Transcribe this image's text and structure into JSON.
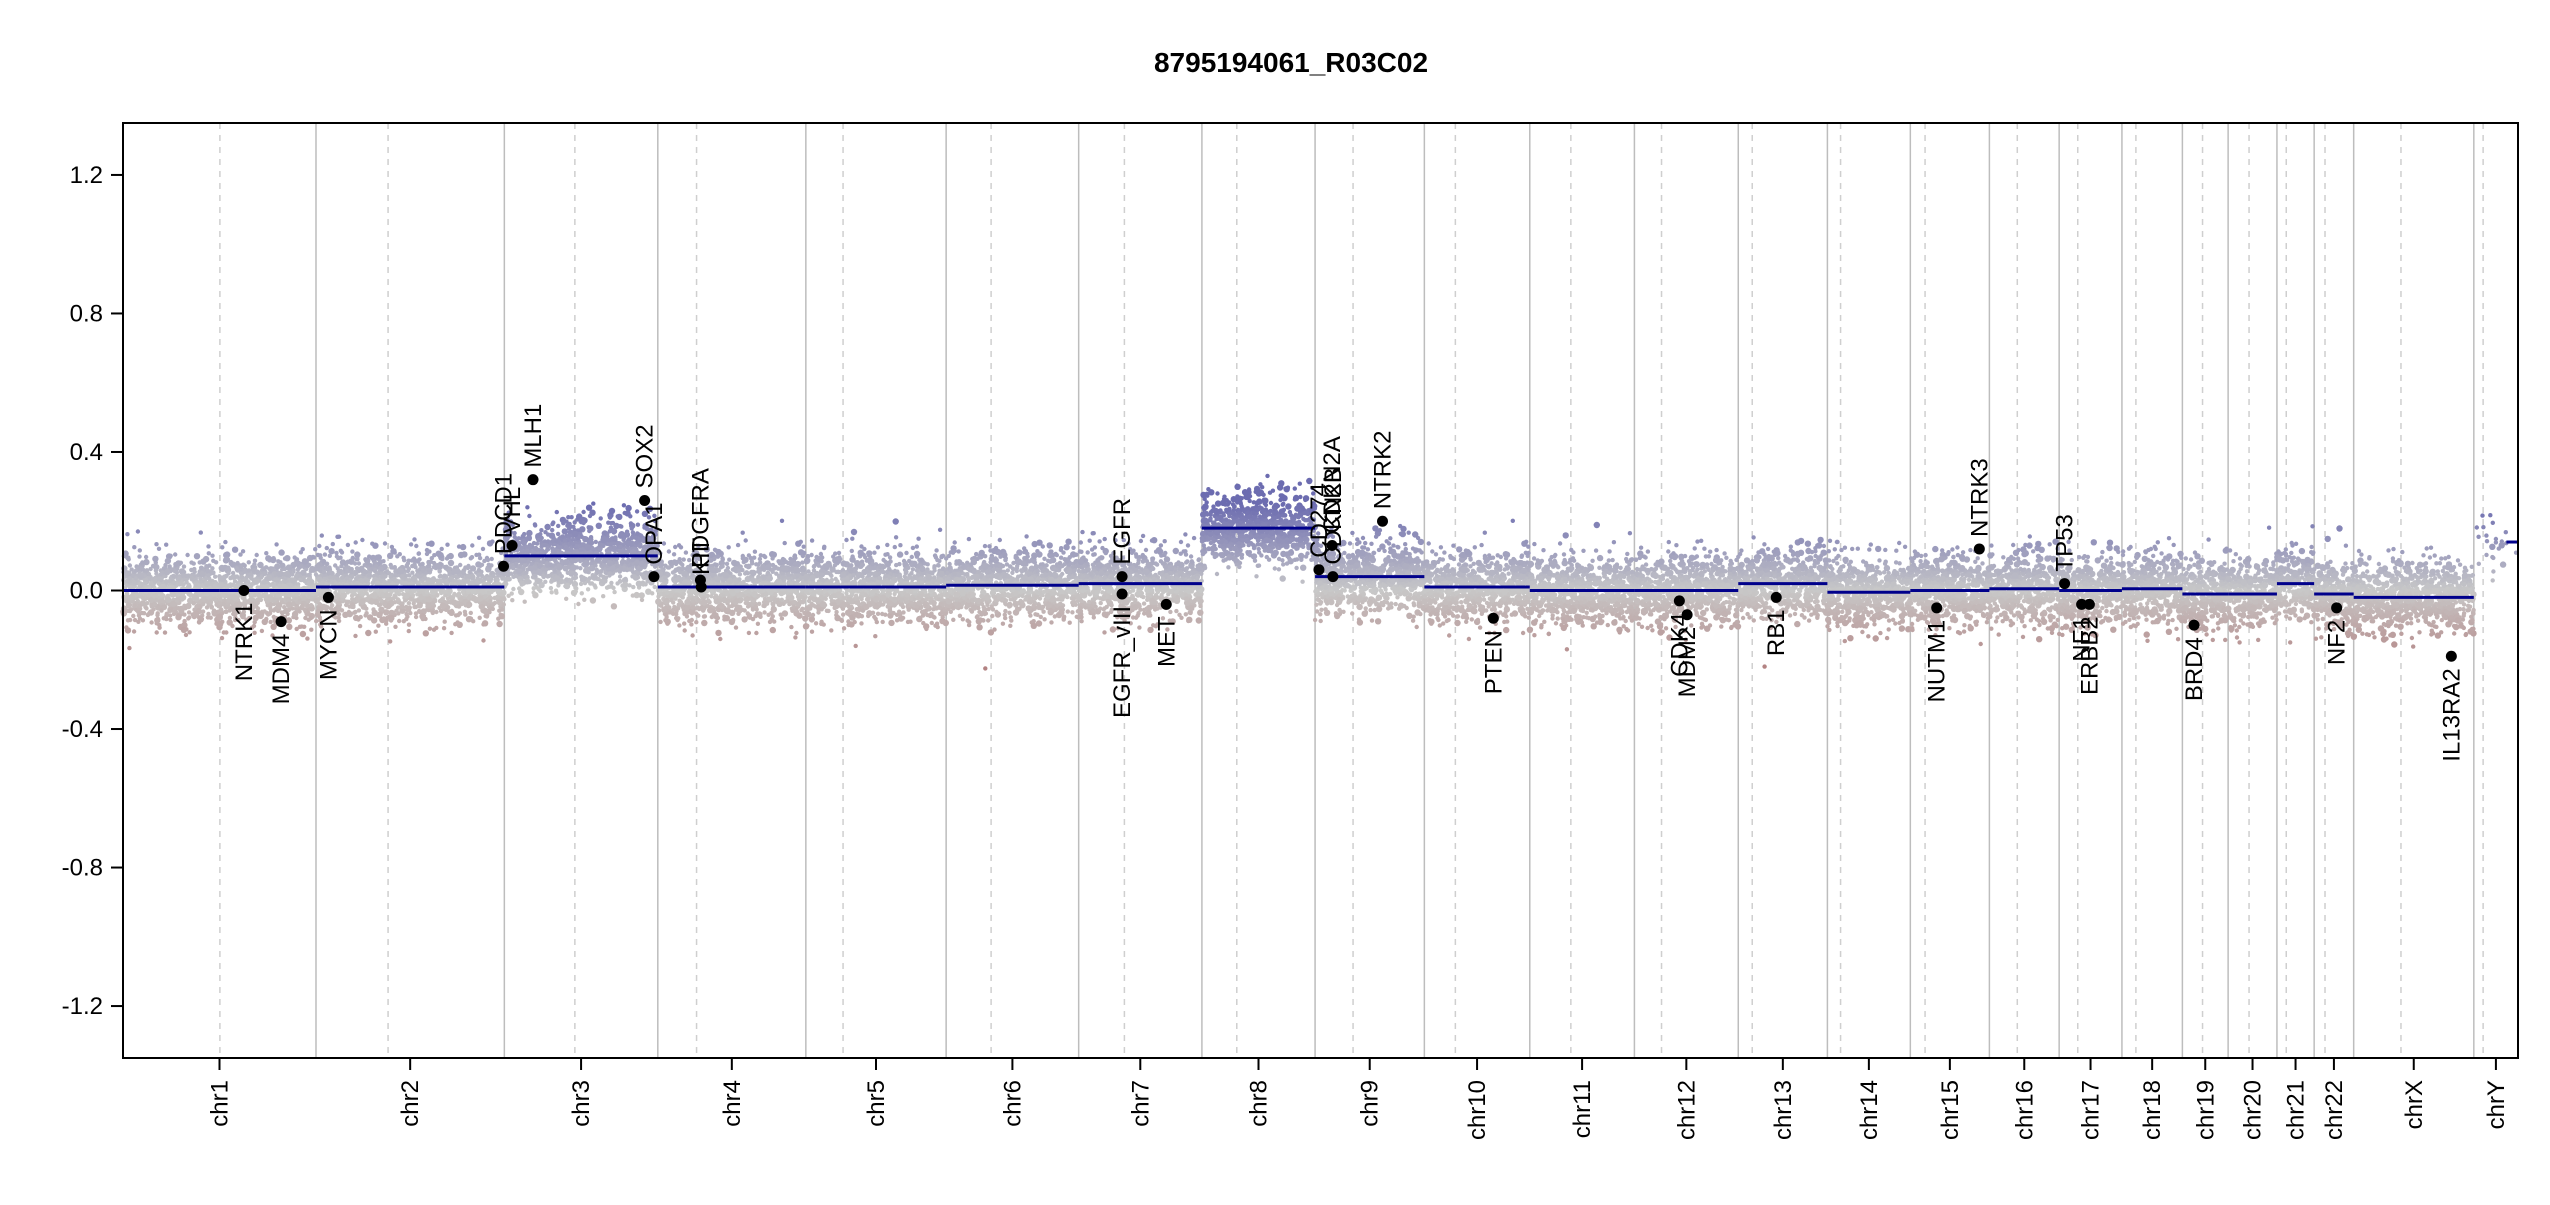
{
  "chart_data": {
    "type": "scatter",
    "title": "8795194061_R03C02",
    "xlabel": "",
    "ylabel": "",
    "ylim": [
      -1.35,
      1.35
    ],
    "y_ticks": [
      {
        "value": 1.2,
        "label": "1.2"
      },
      {
        "value": 0.8,
        "label": "0.8"
      },
      {
        "value": 0.4,
        "label": "0.4"
      },
      {
        "value": 0.0,
        "label": "0.0"
      },
      {
        "value": -0.4,
        "label": "-0.4"
      },
      {
        "value": -0.8,
        "label": "-0.8"
      },
      {
        "value": -1.2,
        "label": "-1.2"
      }
    ],
    "chromosomes": [
      {
        "name": "chr1",
        "start": 0,
        "end": 249,
        "centromere": 125,
        "segments": [
          {
            "from": 0,
            "to": 125,
            "value": 0.0
          },
          {
            "from": 125,
            "to": 249,
            "value": 0.0
          }
        ]
      },
      {
        "name": "chr2",
        "start": 249,
        "end": 492,
        "centromere": 342,
        "segments": [
          {
            "from": 249,
            "to": 492,
            "value": 0.01
          }
        ]
      },
      {
        "name": "chr3",
        "start": 492,
        "end": 690,
        "centromere": 583,
        "segments": [
          {
            "from": 492,
            "to": 690,
            "value": 0.1
          }
        ]
      },
      {
        "name": "chr4",
        "start": 690,
        "end": 881,
        "centromere": 740,
        "segments": [
          {
            "from": 690,
            "to": 881,
            "value": 0.01
          }
        ]
      },
      {
        "name": "chr5",
        "start": 881,
        "end": 1062,
        "centromere": 929,
        "segments": [
          {
            "from": 881,
            "to": 1062,
            "value": 0.01
          }
        ]
      },
      {
        "name": "chr6",
        "start": 1062,
        "end": 1233,
        "centromere": 1120,
        "segments": [
          {
            "from": 1062,
            "to": 1233,
            "value": 0.015
          }
        ]
      },
      {
        "name": "chr7",
        "start": 1233,
        "end": 1392,
        "centromere": 1292,
        "segments": [
          {
            "from": 1233,
            "to": 1392,
            "value": 0.02
          }
        ]
      },
      {
        "name": "chr8",
        "start": 1392,
        "end": 1538,
        "centromere": 1437,
        "segments": [
          {
            "from": 1392,
            "to": 1538,
            "value": 0.18
          }
        ]
      },
      {
        "name": "chr9",
        "start": 1538,
        "end": 1679,
        "centromere": 1587,
        "segments": [
          {
            "from": 1538,
            "to": 1679,
            "value": 0.04
          }
        ]
      },
      {
        "name": "chr10",
        "start": 1679,
        "end": 1815,
        "centromere": 1719,
        "segments": [
          {
            "from": 1679,
            "to": 1815,
            "value": 0.01
          }
        ]
      },
      {
        "name": "chr11",
        "start": 1815,
        "end": 1950,
        "centromere": 1868,
        "segments": [
          {
            "from": 1815,
            "to": 1950,
            "value": 0.0
          }
        ]
      },
      {
        "name": "chr12",
        "start": 1950,
        "end": 2084,
        "centromere": 1985,
        "segments": [
          {
            "from": 1950,
            "to": 2084,
            "value": 0.0
          }
        ]
      },
      {
        "name": "chr13",
        "start": 2084,
        "end": 2199,
        "centromere": 2102,
        "segments": [
          {
            "from": 2084,
            "to": 2199,
            "value": 0.02
          }
        ]
      },
      {
        "name": "chr14",
        "start": 2199,
        "end": 2306,
        "centromere": 2216,
        "segments": [
          {
            "from": 2199,
            "to": 2306,
            "value": -0.005
          }
        ]
      },
      {
        "name": "chr15",
        "start": 2306,
        "end": 2408,
        "centromere": 2325,
        "segments": [
          {
            "from": 2306,
            "to": 2408,
            "value": 0.0
          }
        ]
      },
      {
        "name": "chr16",
        "start": 2408,
        "end": 2498,
        "centromere": 2444,
        "segments": [
          {
            "from": 2408,
            "to": 2498,
            "value": 0.005
          }
        ]
      },
      {
        "name": "chr17",
        "start": 2498,
        "end": 2579,
        "centromere": 2522,
        "segments": [
          {
            "from": 2498,
            "to": 2579,
            "value": 0.0
          }
        ]
      },
      {
        "name": "chr18",
        "start": 2579,
        "end": 2657,
        "centromere": 2597,
        "segments": [
          {
            "from": 2579,
            "to": 2657,
            "value": 0.005
          }
        ]
      },
      {
        "name": "chr19",
        "start": 2657,
        "end": 2716,
        "centromere": 2683,
        "segments": [
          {
            "from": 2657,
            "to": 2716,
            "value": -0.01
          }
        ]
      },
      {
        "name": "chr20",
        "start": 2716,
        "end": 2779,
        "centromere": 2743,
        "segments": [
          {
            "from": 2716,
            "to": 2779,
            "value": -0.01
          }
        ]
      },
      {
        "name": "chr21",
        "start": 2779,
        "end": 2827,
        "centromere": 2791,
        "segments": [
          {
            "from": 2779,
            "to": 2827,
            "value": 0.02
          }
        ]
      },
      {
        "name": "chr22",
        "start": 2827,
        "end": 2878,
        "centromere": 2841,
        "segments": [
          {
            "from": 2827,
            "to": 2878,
            "value": -0.01
          }
        ]
      },
      {
        "name": "chrX",
        "start": 2878,
        "end": 3033,
        "centromere": 2939,
        "segments": [
          {
            "from": 2878,
            "to": 3033,
            "value": -0.02
          }
        ]
      },
      {
        "name": "chrY",
        "start": 3033,
        "end": 3090,
        "centromere": 3045,
        "segments": [
          {
            "from": 3075,
            "to": 3090,
            "value": 0.14
          }
        ]
      }
    ],
    "genes": [
      {
        "name": "NTRK1",
        "pos": 156,
        "value": 0.0,
        "label_side": "below"
      },
      {
        "name": "MDM4",
        "pos": 204,
        "value": -0.09,
        "label_side": "below"
      },
      {
        "name": "MYCN",
        "pos": 265,
        "value": -0.02,
        "label_side": "below"
      },
      {
        "name": "PDCD1",
        "pos": 491,
        "value": 0.07,
        "label_side": "above"
      },
      {
        "name": "VHL",
        "pos": 502,
        "value": 0.13,
        "label_side": "above"
      },
      {
        "name": "MLH1",
        "pos": 529,
        "value": 0.32,
        "label_side": "above"
      },
      {
        "name": "SOX2",
        "pos": 673,
        "value": 0.26,
        "label_side": "above"
      },
      {
        "name": "OPA1",
        "pos": 685,
        "value": 0.04,
        "label_side": "above"
      },
      {
        "name": "PDGFRA",
        "pos": 745,
        "value": 0.03,
        "label_side": "above"
      },
      {
        "name": "KIT",
        "pos": 746,
        "value": 0.01,
        "label_side": "above"
      },
      {
        "name": "EGFR",
        "pos": 1289,
        "value": 0.04,
        "label_side": "above"
      },
      {
        "name": "EGFR_vIII",
        "pos": 1289,
        "value": -0.01,
        "label_side": "below"
      },
      {
        "name": "MET",
        "pos": 1346,
        "value": -0.04,
        "label_side": "below"
      },
      {
        "name": "CD274",
        "pos": 1543,
        "value": 0.06,
        "label_side": "above"
      },
      {
        "name": "CDKN2A",
        "pos": 1560,
        "value": 0.13,
        "label_side": "above"
      },
      {
        "name": "CDKN2B",
        "pos": 1561,
        "value": 0.04,
        "label_side": "above"
      },
      {
        "name": "NTRK2",
        "pos": 1625,
        "value": 0.2,
        "label_side": "above"
      },
      {
        "name": "PTEN",
        "pos": 1768,
        "value": -0.08,
        "label_side": "below"
      },
      {
        "name": "CDK4",
        "pos": 2008,
        "value": -0.03,
        "label_side": "below"
      },
      {
        "name": "MDM2",
        "pos": 2018,
        "value": -0.07,
        "label_side": "below"
      },
      {
        "name": "RB1",
        "pos": 2133,
        "value": -0.02,
        "label_side": "below"
      },
      {
        "name": "NUTM1",
        "pos": 2340,
        "value": -0.05,
        "label_side": "below"
      },
      {
        "name": "NTRK3",
        "pos": 2395,
        "value": 0.12,
        "label_side": "above"
      },
      {
        "name": "TP53",
        "pos": 2505,
        "value": 0.02,
        "label_side": "above"
      },
      {
        "name": "NF1",
        "pos": 2527,
        "value": -0.04,
        "label_side": "below"
      },
      {
        "name": "ERBB2",
        "pos": 2537,
        "value": -0.04,
        "label_side": "below"
      },
      {
        "name": "BRD4",
        "pos": 2672,
        "value": -0.1,
        "label_side": "below"
      },
      {
        "name": "NF2",
        "pos": 2856,
        "value": -0.05,
        "label_side": "below"
      },
      {
        "name": "IL13RA2",
        "pos": 3004,
        "value": -0.19,
        "label_side": "below"
      }
    ],
    "probe_noise": {
      "typical_sd": 0.05,
      "note_color_gain": "#7a7ab8",
      "note_color_loss": "#b88a8a"
    },
    "colors": {
      "segment": "#00008b",
      "gain_point": "#6c6cb0",
      "neutral_point": "#c8c8c8",
      "loss_point": "#b07a7a",
      "gene_point": "#000000",
      "chr_boundary": "#bdbdbd",
      "centromere": "#cfcfcf"
    }
  }
}
